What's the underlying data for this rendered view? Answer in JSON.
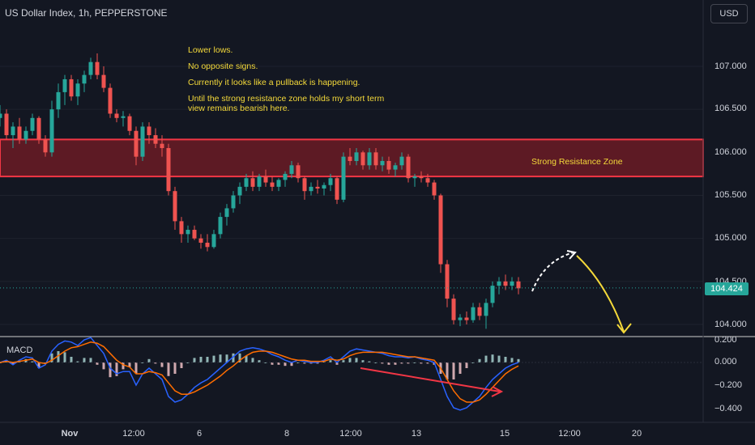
{
  "header": {
    "title": "US Dollar Index, 1h, PEPPERSTONE",
    "currency_button": "USD"
  },
  "annotations": {
    "notes": [
      "Lower lows.",
      "No opposite signs.",
      "Currently it looks like a pullback is happening.",
      "Until the strong resistance zone holds my short term view remains bearish here."
    ],
    "zone_label": "Strong Resistance Zone"
  },
  "colors": {
    "background": "#131722",
    "up_candle": "#26a69a",
    "down_candle": "#ef5350",
    "zone_fill": "#5d1a24",
    "zone_border": "#f23645",
    "annotation": "#f4d93a",
    "macd_line": "#2962ff",
    "signal_line": "#ff6d00",
    "divergence_line": "#f23645"
  },
  "chart_data": [
    {
      "type": "line",
      "title": "US Dollar Index, 1h, PEPPERSTONE",
      "ylim": [
        103.8,
        107.5
      ],
      "yticks": [
        "107.000",
        "106.500",
        "106.000",
        "105.500",
        "105.000",
        "104.500",
        "104.000"
      ],
      "current_price": "104.424",
      "xticks": [
        "Nov",
        "12:00",
        "6",
        "8",
        "12:00",
        "13",
        "15",
        "12:00",
        "20"
      ],
      "x_start_day": 31,
      "candles": [
        {
          "day": 31.0,
          "o": 106.4,
          "h": 106.55,
          "l": 106.3,
          "c": 106.45
        },
        {
          "day": 31.1,
          "o": 106.45,
          "h": 106.5,
          "l": 106.15,
          "c": 106.2
        },
        {
          "day": 31.2,
          "o": 106.2,
          "h": 106.35,
          "l": 106.05,
          "c": 106.3
        },
        {
          "day": 31.3,
          "o": 106.3,
          "h": 106.4,
          "l": 106.1,
          "c": 106.15
        },
        {
          "day": 31.4,
          "o": 106.15,
          "h": 106.3,
          "l": 106.1,
          "c": 106.25
        },
        {
          "day": 31.5,
          "o": 106.25,
          "h": 106.45,
          "l": 106.2,
          "c": 106.4
        },
        {
          "day": 31.6,
          "o": 106.4,
          "h": 106.42,
          "l": 106.1,
          "c": 106.15
        },
        {
          "day": 31.7,
          "o": 106.15,
          "h": 106.2,
          "l": 105.95,
          "c": 106.0
        },
        {
          "day": 31.8,
          "o": 106.0,
          "h": 106.6,
          "l": 105.95,
          "c": 106.5
        },
        {
          "day": 31.9,
          "o": 106.5,
          "h": 106.8,
          "l": 106.4,
          "c": 106.7
        },
        {
          "day": 32.0,
          "o": 106.7,
          "h": 106.9,
          "l": 106.55,
          "c": 106.85
        },
        {
          "day": 32.1,
          "o": 106.85,
          "h": 106.9,
          "l": 106.6,
          "c": 106.65
        },
        {
          "day": 32.2,
          "o": 106.65,
          "h": 106.85,
          "l": 106.55,
          "c": 106.8
        },
        {
          "day": 32.3,
          "o": 106.8,
          "h": 106.95,
          "l": 106.7,
          "c": 106.9
        },
        {
          "day": 32.4,
          "o": 106.9,
          "h": 107.1,
          "l": 106.85,
          "c": 107.05
        },
        {
          "day": 32.5,
          "o": 107.05,
          "h": 107.15,
          "l": 106.85,
          "c": 106.9
        },
        {
          "day": 32.6,
          "o": 106.9,
          "h": 107.0,
          "l": 106.7,
          "c": 106.75
        },
        {
          "day": 32.7,
          "o": 106.75,
          "h": 106.8,
          "l": 106.4,
          "c": 106.45
        },
        {
          "day": 32.8,
          "o": 106.45,
          "h": 106.5,
          "l": 106.35,
          "c": 106.4
        },
        {
          "day": 32.9,
          "o": 106.4,
          "h": 106.48,
          "l": 106.3,
          "c": 106.42
        },
        {
          "day": 33.0,
          "o": 106.42,
          "h": 106.45,
          "l": 106.2,
          "c": 106.25
        },
        {
          "day": 33.1,
          "o": 106.25,
          "h": 106.3,
          "l": 105.85,
          "c": 105.95
        },
        {
          "day": 33.2,
          "o": 105.95,
          "h": 106.35,
          "l": 105.9,
          "c": 106.3
        },
        {
          "day": 33.3,
          "o": 106.3,
          "h": 106.35,
          "l": 106.1,
          "c": 106.2
        },
        {
          "day": 33.4,
          "o": 106.2,
          "h": 106.28,
          "l": 106.05,
          "c": 106.1
        },
        {
          "day": 33.5,
          "o": 106.1,
          "h": 106.2,
          "l": 105.95,
          "c": 106.05
        },
        {
          "day": 33.6,
          "o": 106.05,
          "h": 106.1,
          "l": 105.5,
          "c": 105.55
        },
        {
          "day": 33.7,
          "o": 105.55,
          "h": 105.6,
          "l": 105.1,
          "c": 105.2
        },
        {
          "day": 33.8,
          "o": 105.2,
          "h": 105.25,
          "l": 104.95,
          "c": 105.05
        },
        {
          "day": 33.9,
          "o": 105.05,
          "h": 105.15,
          "l": 104.95,
          "c": 105.1
        },
        {
          "day": 34.0,
          "o": 105.1,
          "h": 105.15,
          "l": 104.98,
          "c": 105.0
        },
        {
          "day": 34.1,
          "o": 105.0,
          "h": 105.05,
          "l": 104.88,
          "c": 104.95
        },
        {
          "day": 34.2,
          "o": 104.95,
          "h": 105.05,
          "l": 104.85,
          "c": 104.9
        },
        {
          "day": 34.3,
          "o": 104.9,
          "h": 105.1,
          "l": 104.88,
          "c": 105.05
        },
        {
          "day": 34.4,
          "o": 105.05,
          "h": 105.3,
          "l": 105.0,
          "c": 105.25
        },
        {
          "day": 34.5,
          "o": 105.25,
          "h": 105.4,
          "l": 105.15,
          "c": 105.35
        },
        {
          "day": 34.6,
          "o": 105.35,
          "h": 105.55,
          "l": 105.3,
          "c": 105.5
        },
        {
          "day": 34.7,
          "o": 105.5,
          "h": 105.65,
          "l": 105.4,
          "c": 105.6
        },
        {
          "day": 34.8,
          "o": 105.6,
          "h": 105.75,
          "l": 105.55,
          "c": 105.7
        },
        {
          "day": 34.9,
          "o": 105.7,
          "h": 105.78,
          "l": 105.55,
          "c": 105.6
        },
        {
          "day": 35.0,
          "o": 105.6,
          "h": 105.75,
          "l": 105.55,
          "c": 105.72
        },
        {
          "day": 35.1,
          "o": 105.72,
          "h": 105.8,
          "l": 105.6,
          "c": 105.65
        },
        {
          "day": 35.2,
          "o": 105.65,
          "h": 105.72,
          "l": 105.55,
          "c": 105.6
        },
        {
          "day": 35.3,
          "o": 105.6,
          "h": 105.7,
          "l": 105.55,
          "c": 105.68
        },
        {
          "day": 35.4,
          "o": 105.68,
          "h": 105.78,
          "l": 105.6,
          "c": 105.75
        },
        {
          "day": 35.5,
          "o": 105.75,
          "h": 105.9,
          "l": 105.7,
          "c": 105.85
        },
        {
          "day": 35.6,
          "o": 105.85,
          "h": 105.88,
          "l": 105.65,
          "c": 105.7
        },
        {
          "day": 35.7,
          "o": 105.7,
          "h": 105.72,
          "l": 105.45,
          "c": 105.55
        },
        {
          "day": 35.8,
          "o": 105.55,
          "h": 105.65,
          "l": 105.5,
          "c": 105.6
        },
        {
          "day": 35.9,
          "o": 105.6,
          "h": 105.68,
          "l": 105.52,
          "c": 105.58
        },
        {
          "day": 36.0,
          "o": 105.58,
          "h": 105.65,
          "l": 105.5,
          "c": 105.62
        },
        {
          "day": 36.1,
          "o": 105.62,
          "h": 105.75,
          "l": 105.55,
          "c": 105.7
        },
        {
          "day": 36.2,
          "o": 105.7,
          "h": 105.72,
          "l": 105.4,
          "c": 105.45
        },
        {
          "day": 36.3,
          "o": 105.45,
          "h": 106.0,
          "l": 105.42,
          "c": 105.95
        },
        {
          "day": 36.4,
          "o": 105.95,
          "h": 106.05,
          "l": 105.85,
          "c": 105.9
        },
        {
          "day": 36.5,
          "o": 105.9,
          "h": 106.05,
          "l": 105.85,
          "c": 106.0
        },
        {
          "day": 36.6,
          "o": 106.0,
          "h": 106.02,
          "l": 105.8,
          "c": 105.85
        },
        {
          "day": 36.7,
          "o": 105.85,
          "h": 106.05,
          "l": 105.8,
          "c": 106.0
        },
        {
          "day": 36.8,
          "o": 106.0,
          "h": 106.05,
          "l": 105.8,
          "c": 105.85
        },
        {
          "day": 36.9,
          "o": 105.85,
          "h": 105.95,
          "l": 105.78,
          "c": 105.9
        },
        {
          "day": 37.0,
          "o": 105.9,
          "h": 105.95,
          "l": 105.75,
          "c": 105.8
        },
        {
          "day": 37.1,
          "o": 105.8,
          "h": 105.88,
          "l": 105.72,
          "c": 105.85
        },
        {
          "day": 37.2,
          "o": 105.85,
          "h": 106.0,
          "l": 105.8,
          "c": 105.95
        },
        {
          "day": 37.3,
          "o": 105.95,
          "h": 105.98,
          "l": 105.65,
          "c": 105.7
        },
        {
          "day": 37.4,
          "o": 105.7,
          "h": 105.75,
          "l": 105.6,
          "c": 105.72
        },
        {
          "day": 37.5,
          "o": 105.72,
          "h": 105.78,
          "l": 105.65,
          "c": 105.7
        },
        {
          "day": 37.6,
          "o": 105.7,
          "h": 105.75,
          "l": 105.6,
          "c": 105.65
        },
        {
          "day": 37.7,
          "o": 105.65,
          "h": 105.68,
          "l": 105.45,
          "c": 105.5
        },
        {
          "day": 37.8,
          "o": 105.5,
          "h": 105.52,
          "l": 104.6,
          "c": 104.7
        },
        {
          "day": 37.9,
          "o": 104.7,
          "h": 104.75,
          "l": 104.2,
          "c": 104.3
        },
        {
          "day": 38.0,
          "o": 104.3,
          "h": 104.35,
          "l": 104.0,
          "c": 104.05
        },
        {
          "day": 38.1,
          "o": 104.05,
          "h": 104.12,
          "l": 103.98,
          "c": 104.08
        },
        {
          "day": 38.2,
          "o": 104.08,
          "h": 104.15,
          "l": 104.0,
          "c": 104.05
        },
        {
          "day": 38.3,
          "o": 104.05,
          "h": 104.25,
          "l": 104.02,
          "c": 104.2
        },
        {
          "day": 38.4,
          "o": 104.2,
          "h": 104.25,
          "l": 104.05,
          "c": 104.1
        },
        {
          "day": 38.5,
          "o": 104.1,
          "h": 104.3,
          "l": 103.95,
          "c": 104.25
        },
        {
          "day": 38.6,
          "o": 104.25,
          "h": 104.5,
          "l": 104.2,
          "c": 104.45
        },
        {
          "day": 38.7,
          "o": 104.45,
          "h": 104.55,
          "l": 104.35,
          "c": 104.5
        },
        {
          "day": 38.8,
          "o": 104.5,
          "h": 104.58,
          "l": 104.4,
          "c": 104.45
        },
        {
          "day": 38.9,
          "o": 104.45,
          "h": 104.55,
          "l": 104.4,
          "c": 104.5
        },
        {
          "day": 39.0,
          "o": 104.5,
          "h": 104.55,
          "l": 104.35,
          "c": 104.42
        }
      ],
      "resistance_zone": [
        105.72,
        106.15
      ],
      "current_price_value": 104.424
    },
    {
      "type": "line",
      "title": "MACD",
      "ylim": [
        -0.45,
        0.22
      ],
      "yticks": [
        "0.200",
        "0.000",
        "−0.200",
        "−0.400"
      ],
      "series": [
        {
          "name": "",
          "values": [
            0.0,
            0.02,
            -0.02,
            0.02,
            0.05,
            0.04,
            -0.05,
            -0.02,
            0.1,
            0.16,
            0.19,
            0.18,
            0.15,
            0.2,
            0.22,
            0.15,
            0.08,
            -0.05,
            -0.1,
            -0.08,
            -0.08,
            -0.2,
            -0.1,
            -0.05,
            -0.1,
            -0.15,
            -0.3,
            -0.35,
            -0.33,
            -0.28,
            -0.22,
            -0.18,
            -0.15,
            -0.1,
            -0.05,
            0.0,
            0.05,
            0.1,
            0.12,
            0.13,
            0.12,
            0.1,
            0.07,
            0.05,
            0.02,
            0.0,
            0.02,
            0.01,
            0.0,
            0.0,
            0.02,
            0.05,
            0.0,
            0.05,
            0.1,
            0.12,
            0.11,
            0.1,
            0.09,
            0.08,
            0.06,
            0.05,
            0.05,
            0.04,
            0.05,
            0.03,
            0.02,
            0.0,
            -0.15,
            -0.3,
            -0.4,
            -0.42,
            -0.4,
            -0.35,
            -0.3,
            -0.22,
            -0.15,
            -0.1,
            -0.05,
            -0.02,
            0.0
          ]
        },
        {
          "name": "",
          "values": [
            0.0,
            0.01,
            0.0,
            0.01,
            0.02,
            0.03,
            0.0,
            -0.01,
            0.02,
            0.06,
            0.1,
            0.13,
            0.14,
            0.16,
            0.18,
            0.17,
            0.14,
            0.08,
            0.02,
            -0.02,
            -0.04,
            -0.1,
            -0.1,
            -0.08,
            -0.09,
            -0.11,
            -0.18,
            -0.25,
            -0.28,
            -0.28,
            -0.26,
            -0.23,
            -0.2,
            -0.16,
            -0.12,
            -0.07,
            -0.03,
            0.02,
            0.06,
            0.09,
            0.1,
            0.1,
            0.09,
            0.07,
            0.05,
            0.03,
            0.02,
            0.02,
            0.01,
            0.01,
            0.01,
            0.03,
            0.02,
            0.03,
            0.06,
            0.08,
            0.09,
            0.09,
            0.09,
            0.09,
            0.08,
            0.07,
            0.06,
            0.05,
            0.05,
            0.04,
            0.03,
            0.02,
            -0.05,
            -0.15,
            -0.25,
            -0.32,
            -0.35,
            -0.35,
            -0.33,
            -0.28,
            -0.22,
            -0.16,
            -0.1,
            -0.06,
            -0.03
          ]
        }
      ]
    }
  ]
}
